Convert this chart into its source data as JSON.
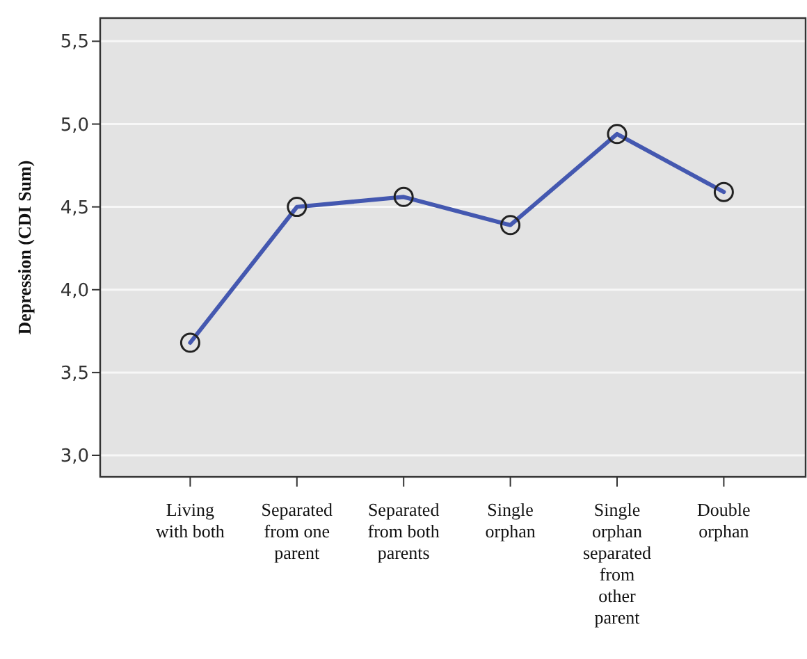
{
  "chart_data": {
    "type": "line",
    "ylabel": "Depression (CDI Sum)",
    "categories": [
      "Living with both",
      "Separated from one parent",
      "Separated from both parents",
      "Single orphan",
      "Single orphan separated from other parent",
      "Double orphan"
    ],
    "series": [
      {
        "color": "#4458b0",
        "values": [
          3.68,
          4.5,
          4.56,
          4.39,
          4.94,
          4.59
        ]
      }
    ],
    "ylim": [
      2.87,
      5.64
    ],
    "yticks": [
      {
        "value": 3.0,
        "label": "3,0"
      },
      {
        "value": 3.5,
        "label": "3,5"
      },
      {
        "value": 4.0,
        "label": "4,0"
      },
      {
        "value": 4.5,
        "label": "4,5"
      },
      {
        "value": 5.0,
        "label": "5,0"
      },
      {
        "value": 5.5,
        "label": "5,5"
      }
    ],
    "grid": "y",
    "marker": "circle",
    "line_style": "solid"
  }
}
